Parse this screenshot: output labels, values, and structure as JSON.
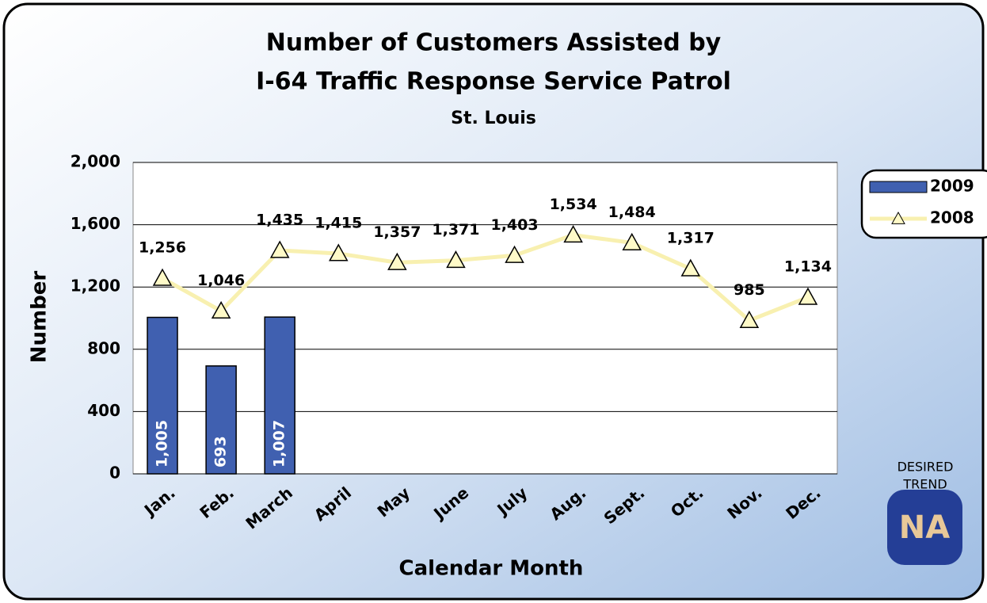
{
  "chart_data": {
    "type": "bar_line",
    "title": [
      "Number of Customers Assisted by",
      "I-64 Traffic Response Service Patrol"
    ],
    "subtitle": "St. Louis",
    "y_label": "Number",
    "x_label": "Calendar Month",
    "categories": [
      "Jan.",
      "Feb.",
      "March",
      "April",
      "May",
      "June",
      "July",
      "Aug.",
      "Sept.",
      "Oct.",
      "Nov.",
      "Dec."
    ],
    "series": [
      {
        "name": "2009",
        "type": "bar",
        "color": "#4060b0",
        "values": [
          1005,
          693,
          1007,
          null,
          null,
          null,
          null,
          null,
          null,
          null,
          null,
          null
        ],
        "value_labels": [
          "1,005",
          "693",
          "1,007",
          null,
          null,
          null,
          null,
          null,
          null,
          null,
          null,
          null
        ]
      },
      {
        "name": "2008",
        "type": "line",
        "color": "#f8f0b0",
        "values": [
          1256,
          1046,
          1435,
          1415,
          1357,
          1371,
          1403,
          1534,
          1484,
          1317,
          985,
          1134
        ],
        "value_labels": [
          "1,256",
          "1,046",
          "1,435",
          "1,415",
          "1,357",
          "1,371",
          "1,403",
          "1,534",
          "1,484",
          "1,317",
          "985",
          "1,134"
        ]
      }
    ],
    "ylim": [
      0,
      2000
    ],
    "yticks": [
      0,
      400,
      800,
      {
        "value": 1200,
        "label": "1,200"
      },
      {
        "value": 1600,
        "label": "1,600"
      },
      {
        "value": 2000,
        "label": "2,000"
      }
    ],
    "grid": true,
    "legend": "right",
    "desired_trend": [
      "DESIRED",
      "TREND"
    ],
    "trend_badge": "NA"
  }
}
